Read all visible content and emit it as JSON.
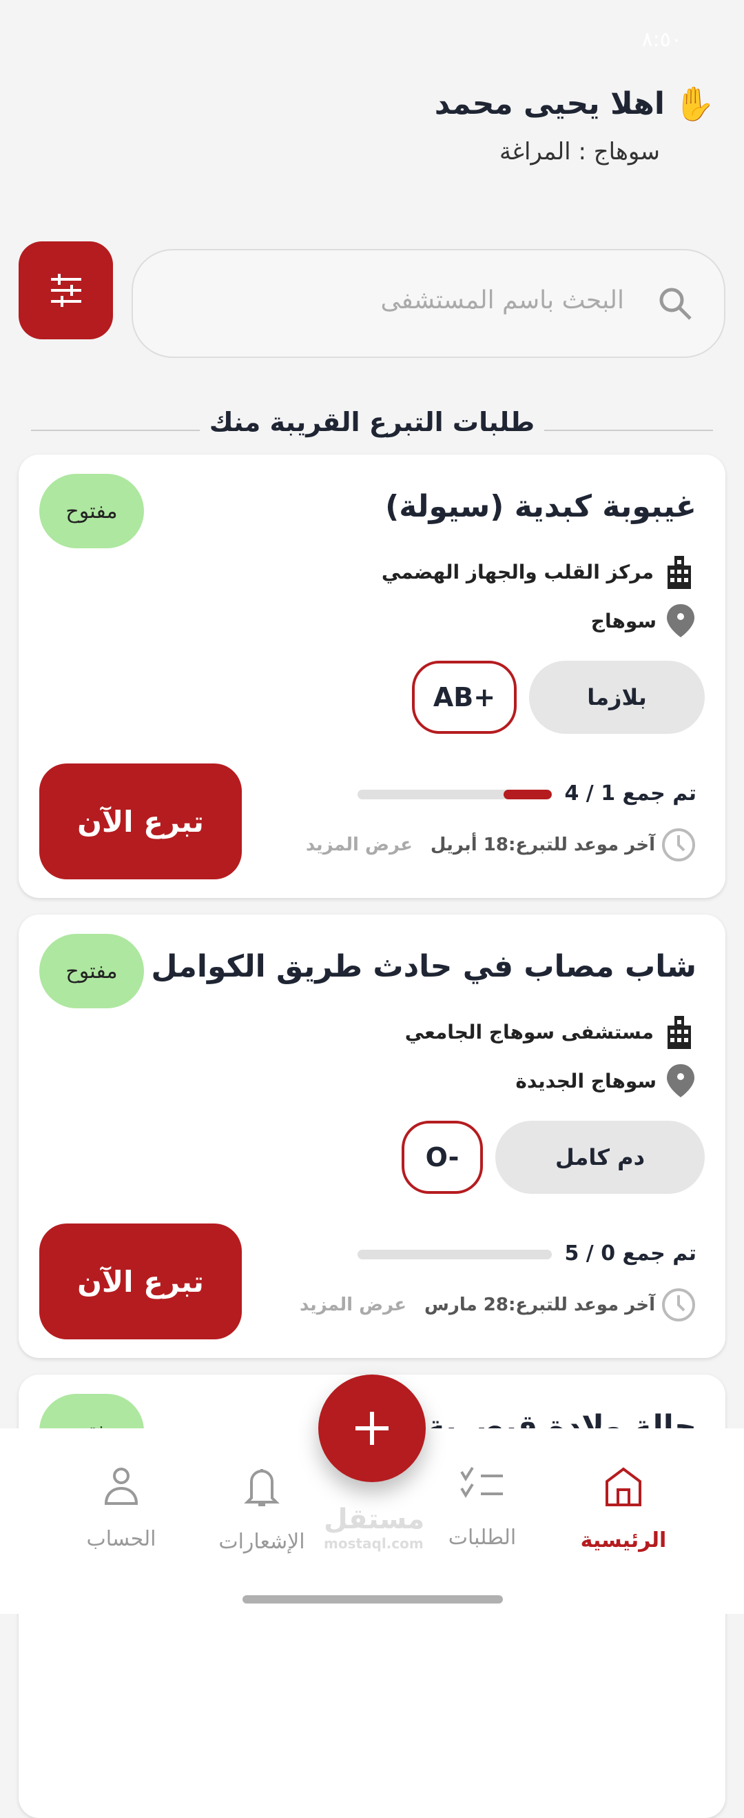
{
  "status_bar": {
    "time": "٨:٥٠"
  },
  "header": {
    "greeting": "اهلا يحيى محمد",
    "wave_emoji": "✋",
    "location": "سوهاج : المراغة"
  },
  "search": {
    "placeholder": "البحث باسم المستشفى"
  },
  "section_title": "طلبات التبرع القريبة منك",
  "colors": {
    "primary": "#b51c1f",
    "badge_open": "#aee7a0"
  },
  "cards": [
    {
      "title": "غيبوبة كبدية (سيولة)",
      "status": "مفتوح",
      "hospital": "مركز القلب والجهاز الهضمي",
      "city": "سوهاج",
      "type": "بلازما",
      "blood": "AB+",
      "progress_text": "تم جمع 1 / 4",
      "progress_fraction": 0.25,
      "deadline": "آخر موعد للتبرع:18 أبريل",
      "more": "عرض المزيد",
      "donate": "تبرع الآن"
    },
    {
      "title": "شاب مصاب في حادث طريق الكوامل",
      "status": "مفتوح",
      "hospital": "مستشفى سوهاج الجامعي",
      "city": "سوهاج الجديدة",
      "type": "دم كامل",
      "blood": "O-",
      "progress_text": "تم جمع 0 / 5",
      "progress_fraction": 0,
      "deadline": "آخر موعد للتبرع:28 مارس",
      "more": "عرض المزيد",
      "donate": "تبرع الآن"
    },
    {
      "title": "حالة ولادة قيصرية",
      "status": "مفتوح"
    }
  ],
  "nav": {
    "home": "الرئيسية",
    "requests": "الطلبات",
    "notifications": "الإشعارات",
    "account": "الحساب"
  },
  "watermark": {
    "ar": "مستقل",
    "en": "mostaql.com"
  }
}
